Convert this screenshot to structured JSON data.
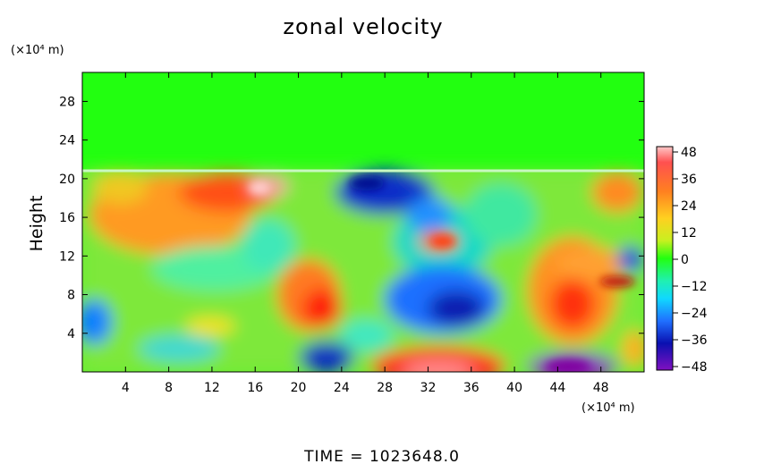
{
  "chart_data": {
    "type": "heatmap",
    "title": "zonal velocity",
    "xlabel": "",
    "ylabel": "Height",
    "x_unit": "(×10⁴ m)",
    "y_unit": "(×10⁴ m)",
    "xlim": [
      0,
      52
    ],
    "ylim": [
      0,
      31
    ],
    "x_ticks": [
      "4",
      "8",
      "12",
      "16",
      "20",
      "24",
      "28",
      "32",
      "36",
      "40",
      "44",
      "48"
    ],
    "y_ticks": [
      "4",
      "8",
      "12",
      "16",
      "20",
      "24",
      "28"
    ],
    "colorbar": {
      "ticks": [
        "48",
        "36",
        "24",
        "12",
        "0",
        "−12",
        "−24",
        "−36",
        "−48"
      ],
      "range": [
        -48,
        48
      ]
    },
    "time_label": "TIME = 1023648.0",
    "field_regions": [
      {
        "x": 8,
        "y": 16,
        "value": 30
      },
      {
        "x": 15,
        "y": 18,
        "value": 44
      },
      {
        "x": 22,
        "y": 7,
        "value": 36
      },
      {
        "x": 32,
        "y": 1,
        "value": 42
      },
      {
        "x": 45,
        "y": 7,
        "value": 34
      },
      {
        "x": 46,
        "y": 11,
        "value": 24
      },
      {
        "x": 49,
        "y": 17,
        "value": 30
      },
      {
        "x": 27,
        "y": 19,
        "value": -40
      },
      {
        "x": 34,
        "y": 7,
        "value": -34
      },
      {
        "x": 45,
        "y": 0.5,
        "value": -48
      },
      {
        "x": 23,
        "y": 1,
        "value": -30
      },
      {
        "x": 32,
        "y": 16,
        "value": -14
      },
      {
        "x": 26,
        "y": 26,
        "value": 0
      }
    ]
  }
}
